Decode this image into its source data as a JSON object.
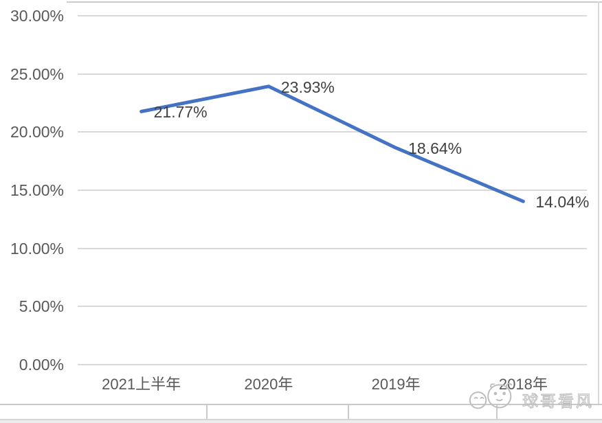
{
  "chart_data": {
    "type": "line",
    "title": "",
    "categories": [
      "2021上半年",
      "2020年",
      "2019年",
      "2018年"
    ],
    "series": [
      {
        "name": "series-1",
        "color": "#4472C4",
        "values": [
          21.77,
          23.93,
          18.64,
          14.04
        ]
      }
    ],
    "data_labels": [
      "21.77%",
      "23.93%",
      "18.64%",
      "14.04%"
    ],
    "y_axis": {
      "ticks": [
        "0.00%",
        "5.00%",
        "10.00%",
        "15.00%",
        "20.00%",
        "25.00%",
        "30.00%"
      ],
      "min": 0,
      "max": 30,
      "step": 5
    },
    "grid": true,
    "legend": false,
    "line_width": 5
  },
  "watermark": {
    "text": "球哥看风",
    "icon": "cartoon-face-icon"
  },
  "colors": {
    "line": "#4472C4",
    "gridline": "#d9d9d9",
    "axis_text": "#595959",
    "data_label_text": "#404040",
    "watermark": "#bdbdbd"
  }
}
